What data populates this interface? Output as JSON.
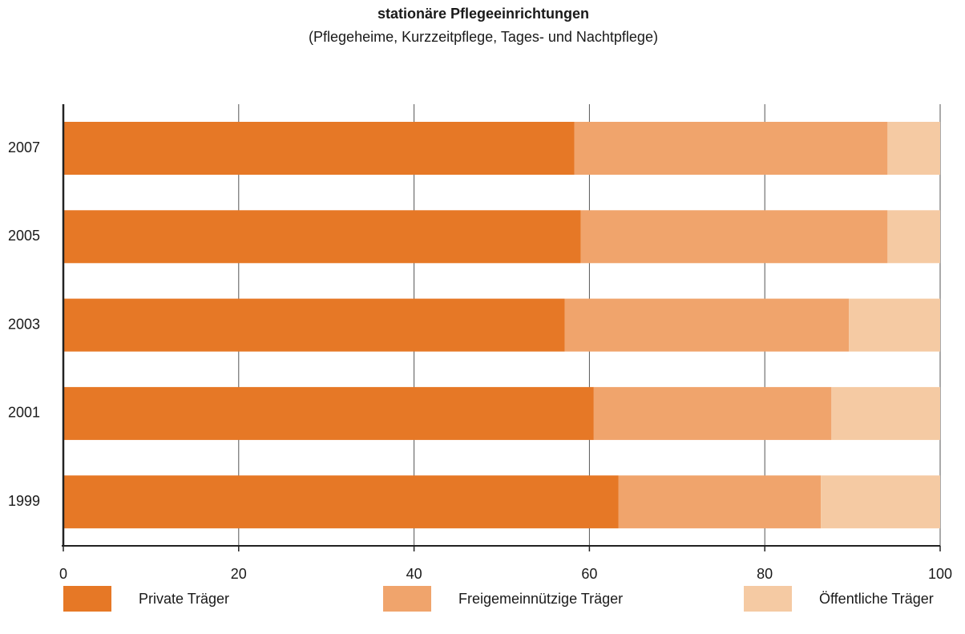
{
  "chart_data": {
    "type": "stacked_bar_horizontal",
    "title": "stationäre Pflegeeinrichtungen",
    "subtitle": "(Pflegeheime, Kurzzeitpflege, Tages- und Nachtpflege)",
    "categories": [
      "2007",
      "2005",
      "2003",
      "2001",
      "1999"
    ],
    "series": [
      {
        "name": "Private Träger",
        "color": "#e67826",
        "values": [
          58.3,
          59.0,
          57.2,
          60.5,
          63.3
        ]
      },
      {
        "name": "Freigemeinnützige Träger",
        "color": "#f0a46c",
        "values": [
          35.7,
          35.0,
          32.4,
          27.1,
          23.1
        ]
      },
      {
        "name": "Öffentliche Träger",
        "color": "#f5caa3",
        "values": [
          6.0,
          6.0,
          10.4,
          12.4,
          13.6
        ]
      }
    ],
    "xlim": [
      0,
      100
    ],
    "xticks": [
      0,
      20,
      40,
      60,
      80,
      100
    ],
    "grid": true,
    "legend": "bottom"
  }
}
